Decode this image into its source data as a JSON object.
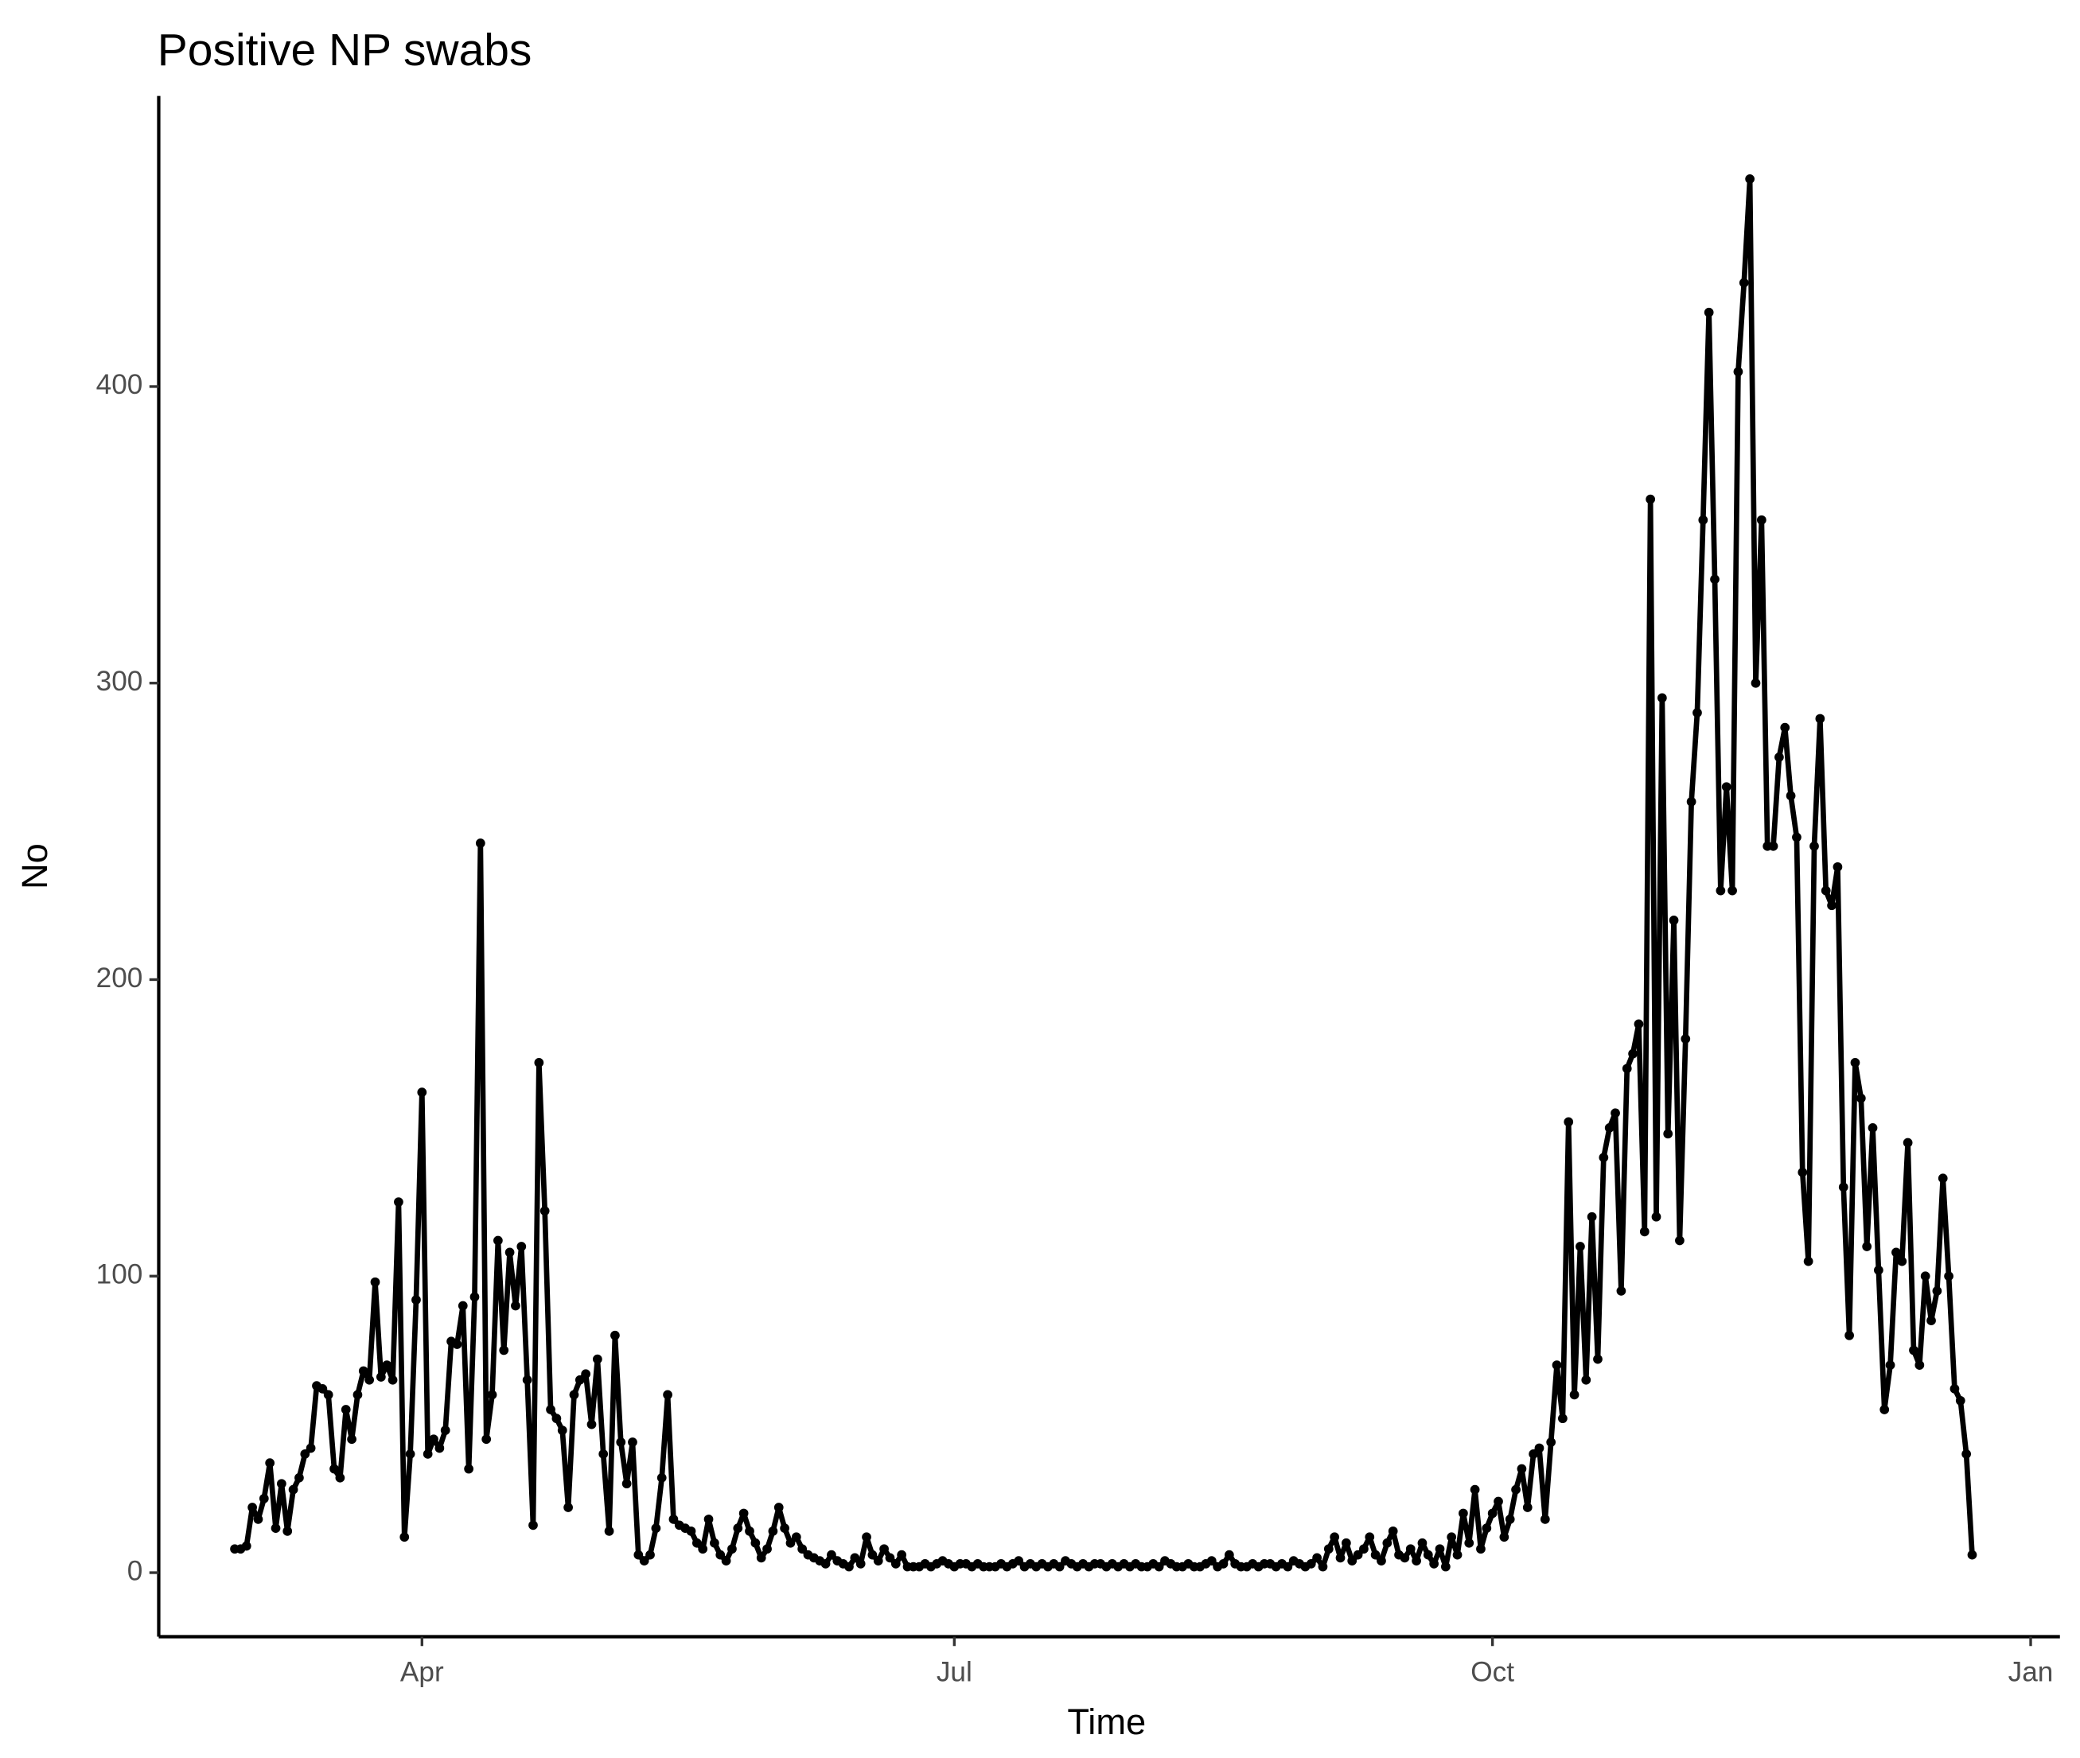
{
  "chart_data": {
    "type": "line",
    "title": "Positive NP swabs",
    "xlabel": "Time",
    "ylabel": "No",
    "x": [
      -32,
      -31,
      -30,
      -29,
      -28,
      -27,
      -26,
      -25,
      -24,
      -23,
      -22,
      -21,
      -20,
      -19,
      -18,
      -17,
      -16,
      -15,
      -14,
      -13,
      -12,
      -11,
      -10,
      -9,
      -8,
      -7,
      -6,
      -5,
      -4,
      -3,
      -2,
      -1,
      0,
      1,
      2,
      3,
      4,
      5,
      6,
      7,
      8,
      9,
      10,
      11,
      12,
      13,
      14,
      15,
      16,
      17,
      18,
      19,
      20,
      21,
      22,
      23,
      24,
      25,
      26,
      27,
      28,
      29,
      30,
      31,
      32,
      33,
      34,
      35,
      36,
      37,
      38,
      39,
      40,
      41,
      42,
      43,
      44,
      45,
      46,
      47,
      48,
      49,
      50,
      51,
      52,
      53,
      54,
      55,
      56,
      57,
      58,
      59,
      60,
      61,
      62,
      63,
      64,
      65,
      66,
      67,
      68,
      69,
      70,
      71,
      72,
      73,
      74,
      75,
      76,
      77,
      78,
      79,
      80,
      81,
      82,
      83,
      84,
      85,
      86,
      87,
      88,
      89,
      90,
      91,
      92,
      93,
      94,
      95,
      96,
      97,
      98,
      99,
      100,
      101,
      102,
      103,
      104,
      105,
      106,
      107,
      108,
      109,
      110,
      111,
      112,
      113,
      114,
      115,
      116,
      117,
      118,
      119,
      120,
      121,
      122,
      123,
      124,
      125,
      126,
      127,
      128,
      129,
      130,
      131,
      132,
      133,
      134,
      135,
      136,
      137,
      138,
      139,
      140,
      141,
      142,
      143,
      144,
      145,
      146,
      147,
      148,
      149,
      150,
      151,
      152,
      153,
      154,
      155,
      156,
      157,
      158,
      159,
      160,
      161,
      162,
      163,
      164,
      165,
      166,
      167,
      168,
      169,
      170,
      171,
      172,
      173,
      174,
      175,
      176,
      177,
      178,
      179,
      180,
      181,
      182,
      183,
      184,
      185,
      186,
      187,
      188,
      189,
      190,
      191,
      192,
      193,
      194,
      195,
      196,
      197,
      198,
      199,
      200,
      201,
      202,
      203,
      204,
      205,
      206,
      207,
      208,
      209,
      210,
      211,
      212,
      213,
      214,
      215,
      216,
      217,
      218,
      219,
      220,
      221,
      222,
      223,
      224,
      225,
      226,
      227,
      228,
      229,
      230,
      231,
      232,
      233,
      234,
      235,
      236,
      237,
      238,
      239,
      240,
      241,
      242,
      243,
      244,
      245,
      246,
      247,
      248,
      249,
      250,
      251,
      252,
      253,
      254,
      255,
      256,
      257,
      258,
      259,
      260,
      261,
      262,
      263,
      264,
      265
    ],
    "series": [
      {
        "name": "No",
        "color": "#000000",
        "values": [
          8,
          8,
          9,
          22,
          18,
          25,
          37,
          15,
          30,
          14,
          28,
          32,
          40,
          42,
          63,
          62,
          60,
          35,
          32,
          55,
          45,
          60,
          68,
          65,
          98,
          66,
          70,
          65,
          125,
          12,
          40,
          92,
          162,
          40,
          45,
          42,
          48,
          78,
          77,
          90,
          35,
          93,
          246,
          45,
          60,
          112,
          75,
          108,
          90,
          110,
          65,
          16,
          172,
          122,
          55,
          52,
          48,
          22,
          60,
          65,
          67,
          50,
          72,
          40,
          14,
          80,
          44,
          30,
          44,
          6,
          4,
          6,
          15,
          32,
          60,
          18,
          16,
          15,
          14,
          10,
          8,
          18,
          10,
          6,
          4,
          8,
          15,
          20,
          14,
          10,
          5,
          8,
          14,
          22,
          15,
          10,
          12,
          8,
          6,
          5,
          4,
          3,
          6,
          4,
          3,
          2,
          5,
          3,
          12,
          6,
          4,
          8,
          5,
          3,
          6,
          2,
          2,
          2,
          3,
          2,
          3,
          4,
          3,
          2,
          3,
          3,
          2,
          3,
          2,
          2,
          2,
          3,
          2,
          3,
          4,
          2,
          3,
          2,
          3,
          2,
          3,
          2,
          4,
          3,
          2,
          3,
          2,
          3,
          3,
          2,
          3,
          2,
          3,
          2,
          3,
          2,
          2,
          3,
          2,
          4,
          3,
          2,
          2,
          3,
          2,
          2,
          3,
          4,
          2,
          3,
          6,
          3,
          2,
          2,
          3,
          2,
          3,
          3,
          2,
          3,
          2,
          4,
          3,
          2,
          3,
          5,
          2,
          8,
          12,
          5,
          10,
          4,
          6,
          8,
          12,
          6,
          4,
          10,
          14,
          6,
          5,
          8,
          4,
          10,
          6,
          3,
          8,
          2,
          12,
          6,
          20,
          10,
          28,
          8,
          15,
          20,
          24,
          12,
          18,
          28,
          35,
          22,
          40,
          42,
          18,
          44,
          70,
          52,
          152,
          60,
          110,
          65,
          120,
          72,
          140,
          150,
          155,
          95,
          170,
          175,
          185,
          115,
          362,
          120,
          295,
          148,
          220,
          112,
          180,
          260,
          290,
          355,
          425,
          335,
          230,
          265,
          230,
          405,
          435,
          470,
          300,
          355,
          245,
          245,
          275,
          285,
          262,
          248,
          135,
          105,
          245,
          288,
          230,
          225,
          238,
          130,
          80,
          172,
          160,
          110,
          150,
          102,
          55,
          70,
          108,
          105,
          145,
          75,
          70,
          100,
          85,
          95,
          133,
          100,
          62,
          58,
          40,
          6
        ]
      }
    ],
    "xlim": [
      -45,
      280
    ],
    "xticks": [
      {
        "value": 0,
        "label": "Apr"
      },
      {
        "value": 91,
        "label": "Jul"
      },
      {
        "value": 183,
        "label": "Oct"
      },
      {
        "value": 275,
        "label": "Jan"
      }
    ],
    "ylim": [
      -21.6,
      498
    ],
    "yticks": [
      0,
      100,
      200,
      300,
      400
    ]
  }
}
